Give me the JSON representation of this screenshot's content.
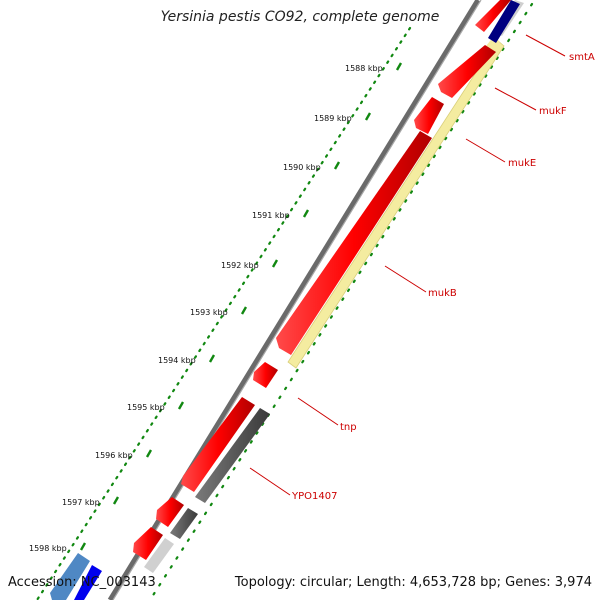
{
  "title": "Yersinia pestis CO92, complete genome",
  "footer": {
    "accession": "Accession: NC_003143",
    "summary": "Topology: circular; Length: 4,653,728 bp; Genes: 3,974"
  },
  "ticks": [
    "1588 kbp",
    "1589 kbp",
    "1590 kbp",
    "1591 kbp",
    "1592 kbp",
    "1593 kbp",
    "1594 kbp",
    "1595 kbp",
    "1596 kbp",
    "1597 kbp",
    "1598 kbp"
  ],
  "gene_labels": [
    "smtA",
    "mukF",
    "mukE",
    "mukB",
    "tnp",
    "YPO1407"
  ],
  "colors": {
    "cds": "#ff0000",
    "dark_feature": "#555555",
    "light_feature": "#c8c8c8",
    "highlight": "#f4eca0",
    "navy_feature": "#000080",
    "blue_feature": "#0000ee",
    "steel_feature": "#4f88c4",
    "tick_dots": "#118811",
    "label_text": "#cc0000"
  }
}
